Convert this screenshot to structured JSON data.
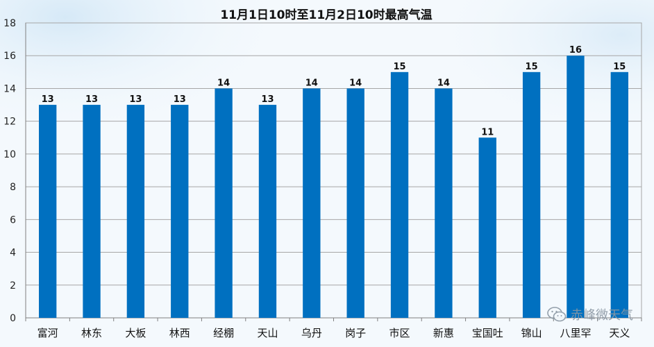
{
  "chart_data": {
    "type": "bar",
    "title": "11月1日10时至11月2日10时最高气温",
    "xlabel": "",
    "ylabel": "",
    "ylim": [
      0,
      18
    ],
    "yticks": [
      0,
      2,
      4,
      6,
      8,
      10,
      12,
      14,
      16,
      18
    ],
    "grid": true,
    "categories": [
      "富河",
      "林东",
      "大板",
      "林西",
      "经棚",
      "天山",
      "乌丹",
      "岗子",
      "市区",
      "新惠",
      "宝国吐",
      "锦山",
      "八里罕",
      "天义"
    ],
    "values": [
      13,
      13,
      13,
      13,
      14,
      13,
      14,
      14,
      15,
      14,
      11,
      15,
      16,
      15
    ],
    "bar_color": "#0070c0",
    "data_labels": true
  },
  "watermark": {
    "text": "赤峰微天气",
    "icon": "wechat-icon"
  }
}
